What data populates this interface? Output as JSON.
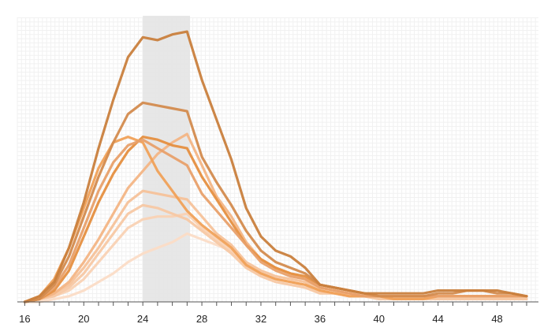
{
  "chart_data": {
    "type": "line",
    "title": "",
    "xlabel": "",
    "ylabel": "",
    "xlim": [
      15.5,
      50.8
    ],
    "ylim": [
      0,
      100
    ],
    "x_ticks": [
      16,
      20,
      24,
      28,
      32,
      36,
      40,
      44,
      48
    ],
    "x_tick_labels": [
      "16",
      "20",
      "24",
      "28",
      "32",
      "36",
      "40",
      "44",
      "48"
    ],
    "y_axis_visible": false,
    "grid": true,
    "highlight_band": {
      "from": 24.0,
      "to": 27.2,
      "color": "#e4e4e4"
    },
    "x": [
      16,
      17,
      18,
      19,
      20,
      21,
      22,
      23,
      24,
      25,
      26,
      27,
      28,
      29,
      30,
      31,
      32,
      33,
      34,
      35,
      36,
      37,
      38,
      39,
      40,
      41,
      42,
      43,
      44,
      45,
      46,
      47,
      48,
      49,
      50
    ],
    "series": [
      {
        "color": "#c9803d",
        "values": [
          0,
          2,
          7,
          19,
          35,
          54,
          71,
          86,
          93,
          92,
          94,
          95,
          78,
          64,
          50,
          33,
          23,
          18,
          16,
          12,
          6,
          5,
          4,
          3,
          3,
          3,
          3,
          3,
          4,
          4,
          4,
          4,
          4,
          3,
          2
        ]
      },
      {
        "color": "#d38b4e",
        "values": [
          0,
          1,
          6,
          16,
          30,
          44,
          56,
          66,
          70,
          69,
          68,
          67,
          51,
          42,
          34,
          25,
          18,
          14,
          12,
          10,
          6,
          5,
          4,
          3,
          2,
          2,
          2,
          2,
          3,
          3,
          4,
          4,
          3,
          3,
          2
        ]
      },
      {
        "color": "#e8a06a",
        "values": [
          0,
          1,
          5,
          13,
          26,
          39,
          49,
          55,
          57,
          54,
          51,
          48,
          38,
          32,
          26,
          20,
          14,
          11,
          9,
          8,
          5,
          4,
          3,
          2,
          2,
          2,
          2,
          2,
          2,
          2,
          2,
          2,
          2,
          2,
          2
        ]
      },
      {
        "color": "#f0a158",
        "values": [
          0,
          2,
          8,
          19,
          33,
          47,
          56,
          58,
          56,
          46,
          39,
          32,
          27,
          23,
          19,
          13,
          10,
          8,
          7,
          6,
          4,
          3,
          2,
          2,
          2,
          1,
          1,
          1,
          2,
          2,
          2,
          2,
          2,
          2,
          2
        ]
      },
      {
        "color": "#e58f40",
        "values": [
          0,
          1,
          4,
          11,
          23,
          35,
          45,
          53,
          58,
          57,
          55,
          54,
          44,
          36,
          28,
          20,
          15,
          12,
          10,
          9,
          6,
          5,
          4,
          3,
          2,
          2,
          2,
          2,
          2,
          2,
          2,
          2,
          2,
          2,
          2
        ]
      },
      {
        "color": "#f3b585",
        "values": [
          0,
          1,
          3,
          7,
          14,
          22,
          31,
          40,
          46,
          52,
          56,
          59,
          48,
          37,
          30,
          21,
          15,
          12,
          10,
          8,
          5,
          4,
          3,
          2,
          2,
          2,
          2,
          2,
          2,
          2,
          2,
          2,
          2,
          2,
          2
        ]
      },
      {
        "color": "#f6c29a",
        "values": [
          0,
          1,
          3,
          6,
          12,
          19,
          27,
          35,
          39,
          38,
          37,
          36,
          30,
          24,
          20,
          14,
          11,
          9,
          8,
          7,
          4,
          3,
          3,
          2,
          2,
          2,
          2,
          2,
          2,
          2,
          2,
          2,
          2,
          2,
          2
        ]
      },
      {
        "color": "#f7c8a4",
        "values": [
          0,
          1,
          2,
          5,
          10,
          17,
          24,
          31,
          34,
          33,
          31,
          29,
          25,
          21,
          17,
          12,
          9,
          7,
          6,
          5,
          3,
          3,
          2,
          2,
          1,
          1,
          1,
          1,
          1,
          1,
          1,
          1,
          1,
          1,
          1
        ]
      },
      {
        "color": "#f9d2b4",
        "values": [
          0,
          1,
          2,
          4,
          8,
          14,
          20,
          26,
          29,
          30,
          30,
          31,
          26,
          22,
          18,
          13,
          10,
          8,
          7,
          6,
          4,
          3,
          2,
          2,
          2,
          1,
          1,
          1,
          1,
          1,
          1,
          1,
          1,
          1,
          1
        ]
      },
      {
        "color": "#fbdcc6",
        "values": [
          0,
          0,
          1,
          2,
          4,
          7,
          10,
          14,
          17,
          19,
          21,
          24,
          22,
          20,
          18,
          13,
          10,
          8,
          7,
          6,
          3,
          3,
          2,
          2,
          1,
          1,
          1,
          1,
          1,
          1,
          1,
          1,
          1,
          1,
          1
        ]
      }
    ]
  }
}
